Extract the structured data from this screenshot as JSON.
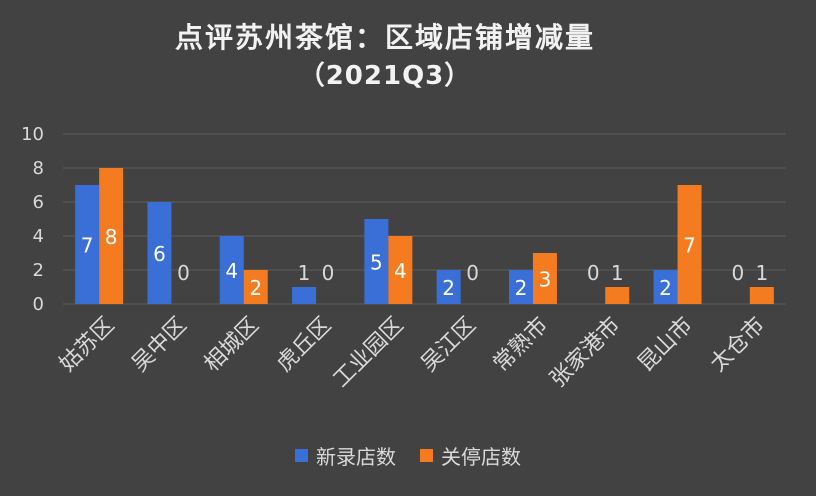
{
  "chart_data": {
    "type": "bar",
    "title": "点评苏州茶馆：区域店铺增减量",
    "subtitle": "（2021Q3）",
    "categories": [
      "姑苏区",
      "吴中区",
      "相城区",
      "虎丘区",
      "工业园区",
      "吴江区",
      "常熟市",
      "张家港市",
      "昆山市",
      "太仓市"
    ],
    "series": [
      {
        "name": "新录店数",
        "color": "#3a6fd8",
        "values": [
          7,
          6,
          4,
          1,
          5,
          2,
          2,
          0,
          2,
          0
        ]
      },
      {
        "name": "关停店数",
        "color": "#f47b20",
        "values": [
          8,
          0,
          2,
          0,
          4,
          0,
          3,
          1,
          7,
          1
        ]
      }
    ],
    "ylim": [
      0,
      10
    ],
    "yticks": [
      "0",
      "2",
      "4",
      "6",
      "8",
      "10"
    ],
    "grid": true,
    "legend": "bottom",
    "data_labels": true
  }
}
